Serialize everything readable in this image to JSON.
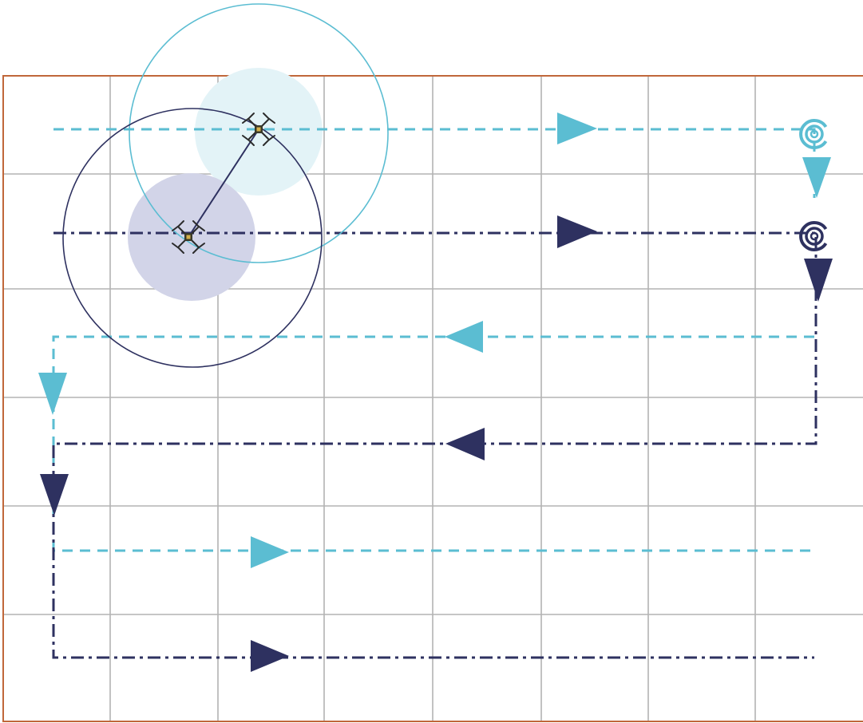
{
  "colors": {
    "background": "#ffffff",
    "border": "#c0673a",
    "grid": "#b3b3b3",
    "path_light": "#5bbdd2",
    "path_dark": "#2e3160",
    "coverage_light_fill": "#e3f3f7",
    "coverage_dark_fill": "#d2d4e8"
  },
  "icons": {
    "drone": "quadcopter-drone-icon",
    "target": "concentric-target-icon",
    "arrow": "triangle-arrow-icon"
  },
  "paths": [
    {
      "id": "light",
      "style": "dashed"
    },
    {
      "id": "dark",
      "style": "dash-dot"
    }
  ]
}
